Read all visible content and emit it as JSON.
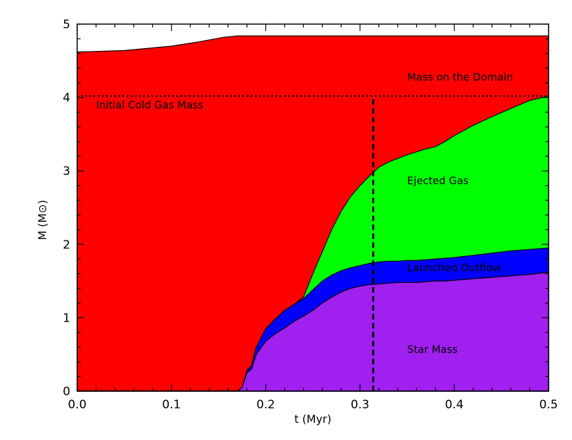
{
  "chart_data": {
    "type": "area",
    "xlabel": "t (Myr)",
    "ylabel": "M (M⊙)",
    "xlim": [
      0.0,
      0.5
    ],
    "ylim": [
      0,
      5
    ],
    "xticks": [
      {
        "value": 0.0,
        "label": "0.0"
      },
      {
        "value": 0.1,
        "label": "0.1"
      },
      {
        "value": 0.2,
        "label": "0.2"
      },
      {
        "value": 0.3,
        "label": "0.3"
      },
      {
        "value": 0.4,
        "label": "0.4"
      },
      {
        "value": 0.5,
        "label": "0.5"
      }
    ],
    "yticks": [
      {
        "value": 0,
        "label": "0"
      },
      {
        "value": 1,
        "label": "1"
      },
      {
        "value": 2,
        "label": "2"
      },
      {
        "value": 3,
        "label": "3"
      },
      {
        "value": 4,
        "label": "4"
      },
      {
        "value": 5,
        "label": "5"
      }
    ],
    "series": [
      {
        "name": "Mass on the Domain",
        "color": "#ff0000",
        "x": [
          0.0,
          0.05,
          0.1,
          0.13,
          0.155,
          0.17,
          0.2,
          0.3,
          0.4,
          0.5
        ],
        "y": [
          4.62,
          4.64,
          4.7,
          4.76,
          4.82,
          4.84,
          4.84,
          4.84,
          4.84,
          4.84
        ]
      },
      {
        "name": "Ejected Gas",
        "color": "#00ff00",
        "x": [
          0.0,
          0.17,
          0.175,
          0.18,
          0.185,
          0.19,
          0.2,
          0.21,
          0.22,
          0.23,
          0.24,
          0.25,
          0.26,
          0.27,
          0.28,
          0.29,
          0.3,
          0.31,
          0.32,
          0.33,
          0.34,
          0.35,
          0.36,
          0.37,
          0.38,
          0.39,
          0.4,
          0.42,
          0.44,
          0.46,
          0.48,
          0.5
        ],
        "y": [
          0,
          0,
          0.05,
          0.28,
          0.35,
          0.6,
          0.85,
          0.98,
          1.1,
          1.18,
          1.28,
          1.6,
          1.9,
          2.2,
          2.45,
          2.65,
          2.8,
          2.93,
          3.05,
          3.12,
          3.17,
          3.22,
          3.26,
          3.3,
          3.33,
          3.4,
          3.48,
          3.62,
          3.74,
          3.85,
          3.96,
          4.02
        ]
      },
      {
        "name": "Launched Outflow",
        "color": "#0000ff",
        "x": [
          0.0,
          0.17,
          0.175,
          0.18,
          0.185,
          0.19,
          0.2,
          0.21,
          0.22,
          0.23,
          0.24,
          0.25,
          0.26,
          0.27,
          0.28,
          0.29,
          0.3,
          0.31,
          0.32,
          0.33,
          0.34,
          0.35,
          0.36,
          0.37,
          0.38,
          0.39,
          0.4,
          0.42,
          0.44,
          0.46,
          0.48,
          0.5
        ],
        "y": [
          0,
          0,
          0.05,
          0.28,
          0.35,
          0.6,
          0.85,
          0.98,
          1.1,
          1.18,
          1.26,
          1.38,
          1.5,
          1.58,
          1.64,
          1.68,
          1.71,
          1.74,
          1.76,
          1.77,
          1.77,
          1.78,
          1.78,
          1.79,
          1.8,
          1.81,
          1.82,
          1.85,
          1.88,
          1.91,
          1.93,
          1.95
        ]
      },
      {
        "name": "Star Mass",
        "color": "#a020f0",
        "x": [
          0.0,
          0.17,
          0.175,
          0.18,
          0.185,
          0.19,
          0.2,
          0.21,
          0.22,
          0.23,
          0.24,
          0.25,
          0.26,
          0.27,
          0.28,
          0.29,
          0.3,
          0.31,
          0.32,
          0.33,
          0.34,
          0.35,
          0.36,
          0.37,
          0.38,
          0.39,
          0.4,
          0.42,
          0.44,
          0.46,
          0.48,
          0.5
        ],
        "y": [
          0,
          0,
          0.05,
          0.25,
          0.3,
          0.5,
          0.68,
          0.78,
          0.86,
          0.95,
          1.02,
          1.1,
          1.2,
          1.28,
          1.35,
          1.4,
          1.43,
          1.45,
          1.46,
          1.47,
          1.48,
          1.48,
          1.48,
          1.49,
          1.5,
          1.5,
          1.51,
          1.53,
          1.55,
          1.57,
          1.59,
          1.62
        ]
      }
    ],
    "reference_lines": [
      {
        "orientation": "horizontal",
        "value": 4.02,
        "style": "dotted",
        "label": "Initial Cold Gas Mass"
      },
      {
        "orientation": "vertical",
        "value": 0.314,
        "ymax": 4.0,
        "style": "dashed"
      }
    ],
    "annotations": [
      {
        "text": "Mass on the Domain",
        "x": 0.35,
        "y": 4.23
      },
      {
        "text": "Initial Cold Gas Mass",
        "x": 0.02,
        "y": 3.85
      },
      {
        "text": "Ejected Gas",
        "x": 0.35,
        "y": 2.82
      },
      {
        "text": "Launched Outflow",
        "x": 0.35,
        "y": 1.63
      },
      {
        "text": "Star Mass",
        "x": 0.35,
        "y": 0.52
      }
    ]
  }
}
